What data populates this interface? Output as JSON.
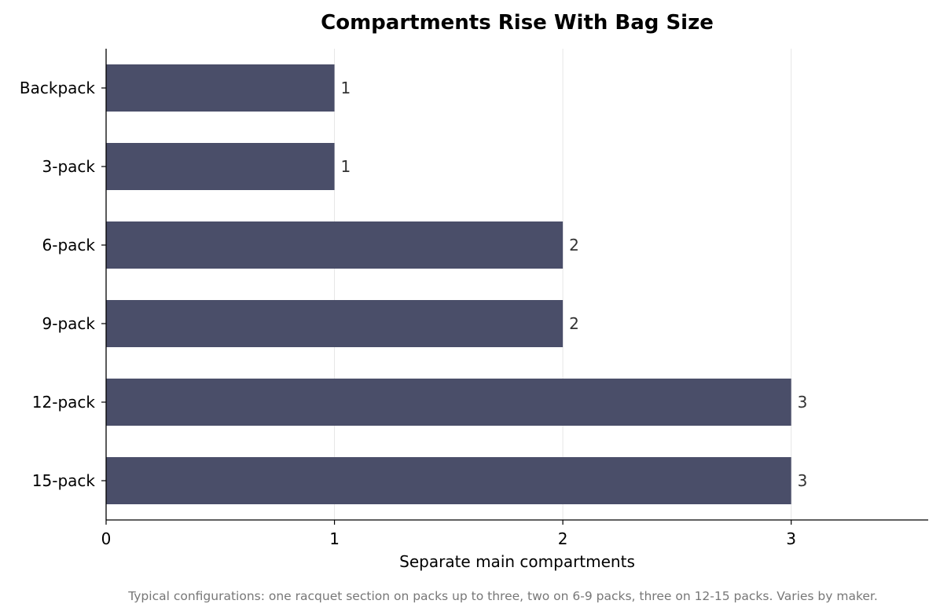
{
  "chart_data": {
    "type": "bar",
    "orientation": "horizontal",
    "title": "Compartments Rise With Bag Size",
    "xlabel": "Separate main compartments",
    "ylabel": "",
    "categories": [
      "Backpack",
      "3-pack",
      "6-pack",
      "9-pack",
      "12-pack",
      "15-pack"
    ],
    "values": [
      1,
      1,
      2,
      2,
      3,
      3
    ],
    "xlim": [
      0,
      3.6
    ],
    "xticks": [
      0,
      1,
      2,
      3
    ],
    "grid": "vertical",
    "bar_color": "#4a4e69",
    "footnote": "Typical configurations: one racquet section on packs up to three, two on 6-9 packs, three on 12-15 packs. Varies by maker."
  }
}
